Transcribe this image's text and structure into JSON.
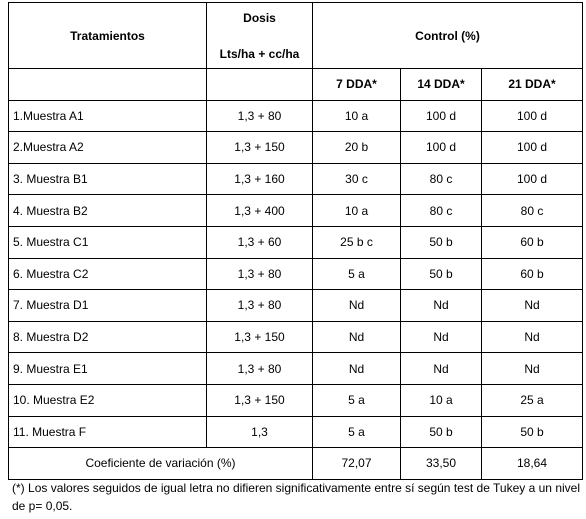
{
  "header": {
    "treatments": "Tratamientos",
    "dose_line1": "Dosis",
    "dose_line2": "Lts/ha + cc/ha",
    "control": "Control (%)",
    "dda7": "7 DDA*",
    "dda14": "14 DDA*",
    "dda21": "21 DDA*"
  },
  "rows": [
    {
      "name": "1.Muestra A1",
      "dose": "1,3  + 80",
      "d7": "10 a",
      "d14": "100 d",
      "d21": "100 d"
    },
    {
      "name": "2.Muestra A2",
      "dose": "1,3 + 150",
      "d7": "20 b",
      "d14": "100 d",
      "d21": "100 d"
    },
    {
      "name": "3. Muestra B1",
      "dose": "1,3 + 160",
      "d7": "30 c",
      "d14": "80 c",
      "d21": "100 d"
    },
    {
      "name": "4. Muestra B2",
      "dose": "1,3 + 400",
      "d7": "10 a",
      "d14": "80 c",
      "d21": "80 c"
    },
    {
      "name": "5. Muestra C1",
      "dose": "1,3 + 60",
      "d7": "25 b c",
      "d14": "50 b",
      "d21": "60 b"
    },
    {
      "name": "6. Muestra C2",
      "dose": "1,3 + 80",
      "d7": "5 a",
      "d14": "50 b",
      "d21": "60 b"
    },
    {
      "name": "7. Muestra D1",
      "dose": "1,3 + 80",
      "d7": "Nd",
      "d14": "Nd",
      "d21": "Nd"
    },
    {
      "name": "8. Muestra D2",
      "dose": "1,3 + 150",
      "d7": "Nd",
      "d14": "Nd",
      "d21": "Nd"
    },
    {
      "name": "9. Muestra E1",
      "dose": "1,3 + 80",
      "d7": "Nd",
      "d14": "Nd",
      "d21": "Nd"
    },
    {
      "name": "10. Muestra E2",
      "dose": "1,3 + 150",
      "d7": "5 a",
      "d14": "10 a",
      "d21": "25 a"
    },
    {
      "name": "11. Muestra F",
      "dose": "1,3",
      "d7": "5 a",
      "d14": "50 b",
      "d21": "50 b"
    }
  ],
  "cv": {
    "label": "Coeficiente de variación (%)",
    "d7": "72,07",
    "d14": "33,50",
    "d21": "18,64"
  },
  "note": "(*) Los valores seguidos de igual letra no difieren significativamente entre sí según test de Tukey a un nivel de p= 0,05."
}
